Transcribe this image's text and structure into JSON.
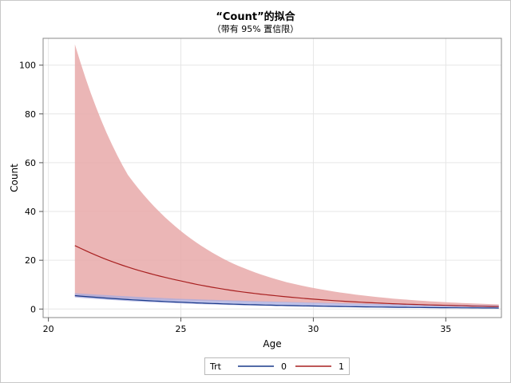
{
  "title": "“Count”的拟合",
  "subtitle": "（带有 95% 置信限）",
  "legend": {
    "title": "Trt"
  },
  "chart_data": {
    "type": "line",
    "xlabel": "Age",
    "ylabel": "Count",
    "xlim": [
      19.8,
      37.1
    ],
    "ylim": [
      -3.5,
      111
    ],
    "x_ticks": [
      "20",
      "25",
      "30",
      "35"
    ],
    "y_ticks": [
      "0",
      "20",
      "40",
      "60",
      "80",
      "100"
    ],
    "grid": true,
    "legend_position": "bottom",
    "series": [
      {
        "name": "0",
        "color": "#1a3a8a",
        "band_color": "#a7abdf",
        "x": [
          21,
          23,
          25,
          27,
          29,
          31,
          33,
          35,
          37
        ],
        "y": [
          5.5,
          3.9,
          2.8,
          2.0,
          1.45,
          1.05,
          0.75,
          0.55,
          0.4
        ],
        "lower": [
          4.8,
          3.3,
          2.3,
          1.6,
          1.1,
          0.8,
          0.5,
          0.35,
          0.25
        ],
        "upper": [
          6.5,
          5.2,
          4.2,
          3.5,
          2.9,
          2.4,
          2.0,
          1.7,
          1.5
        ]
      },
      {
        "name": "1",
        "color": "#a82020",
        "band_color": "#e8a9a9",
        "x": [
          21,
          23,
          25,
          27,
          29,
          31,
          33,
          35,
          37
        ],
        "y": [
          26,
          17.2,
          11.5,
          7.5,
          5.0,
          3.3,
          2.2,
          1.5,
          1.0
        ],
        "lower": [
          5.0,
          4.2,
          3.6,
          3.2,
          2.7,
          2.2,
          1.8,
          1.3,
          0.9
        ],
        "upper": [
          108.5,
          55,
          32,
          18.5,
          11.0,
          6.8,
          4.3,
          2.8,
          1.9
        ]
      }
    ]
  }
}
